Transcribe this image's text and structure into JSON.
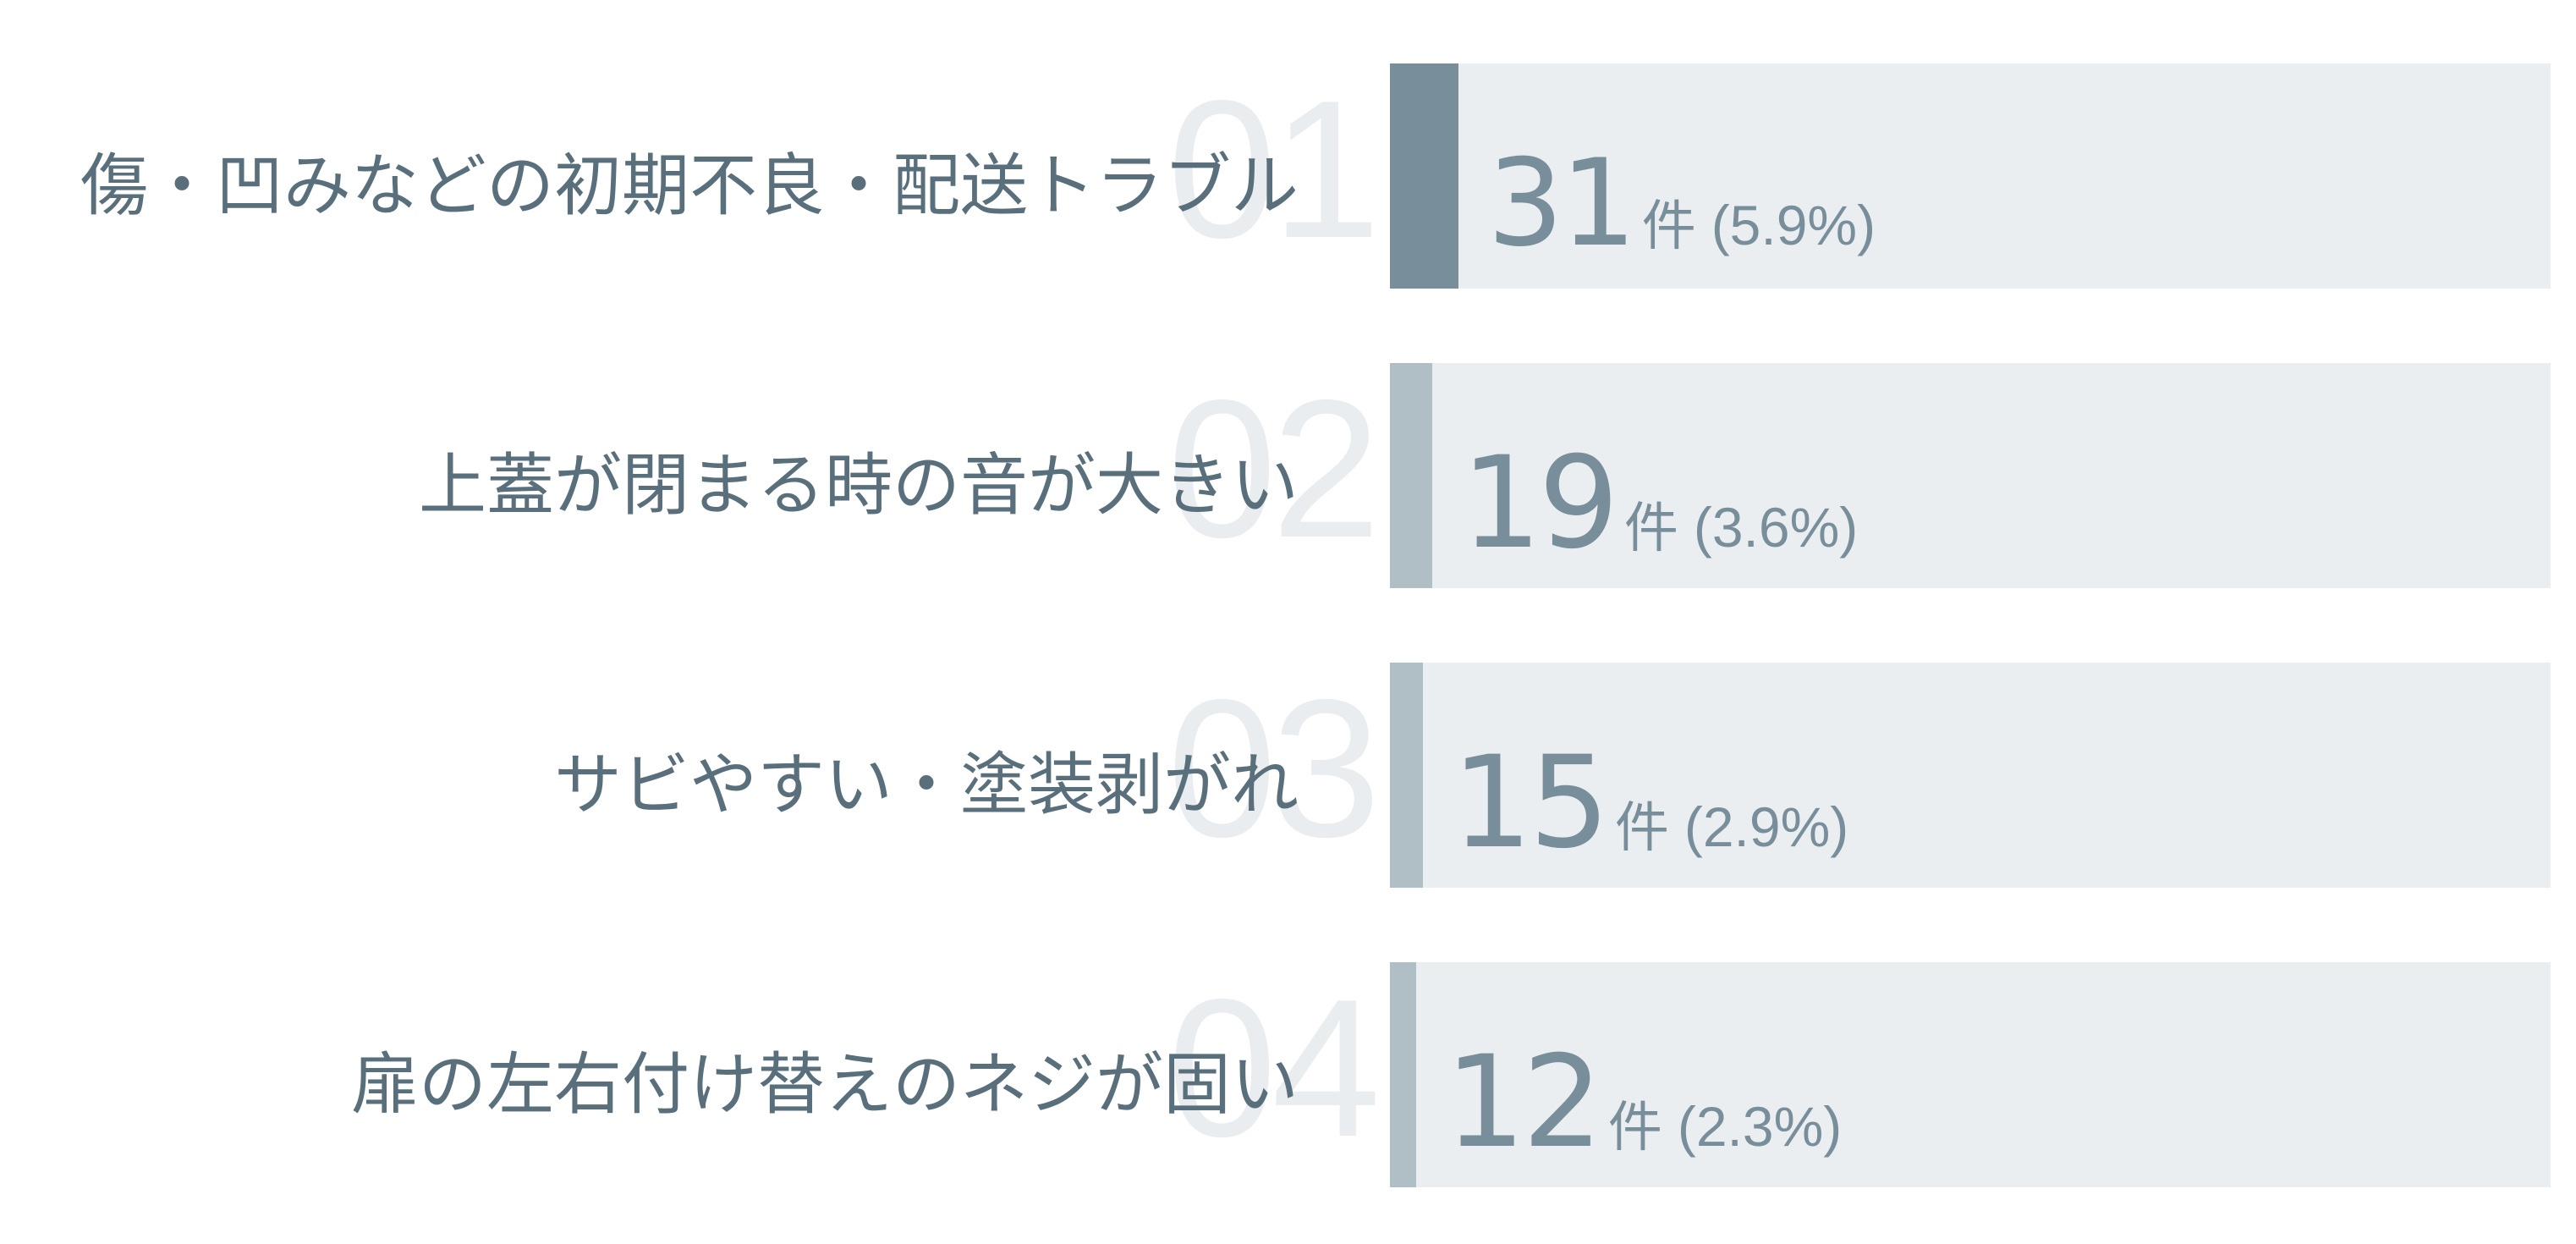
{
  "chart_data": {
    "type": "bar",
    "orientation": "horizontal",
    "unit": "件",
    "max_value": 525,
    "categories": [
      "傷・凹みなどの初期不良・配送トラブル",
      "上蓋が閉まる時の音が大きい",
      "サビやすい・塗装剥がれ",
      "扉の左右付け替えのネジが固い"
    ],
    "values": [
      31,
      19,
      15,
      12
    ],
    "items": [
      {
        "rank": "01",
        "label": "傷・凹みなどの初期不良・配送トラブル",
        "count": "31",
        "unit": "件",
        "percent": "(5.9%)",
        "value": 31
      },
      {
        "rank": "02",
        "label": "上蓋が閉まる時の音が大きい",
        "count": "19",
        "unit": "件",
        "percent": "(3.6%)",
        "value": 19
      },
      {
        "rank": "03",
        "label": "サビやすい・塗装剥がれ",
        "count": "15",
        "unit": "件",
        "percent": "(2.9%)",
        "value": 15
      },
      {
        "rank": "04",
        "label": "扉の左右付け替えのネジが固い",
        "count": "12",
        "unit": "件",
        "percent": "(2.3%)",
        "value": 12
      }
    ],
    "colors": {
      "top_bar": "#788f9b",
      "bar": "#b0bec5",
      "track": "#eaeef1",
      "label_text": "#5a6f7c",
      "value_text": "#788f9b",
      "rank_text": "#e9edf0"
    }
  }
}
